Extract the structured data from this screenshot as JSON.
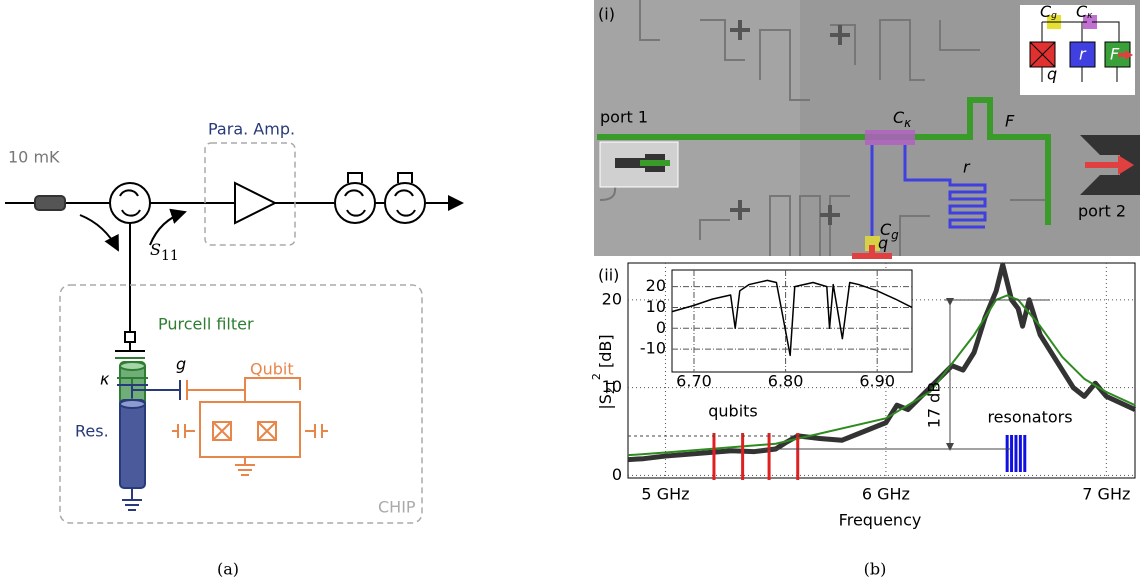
{
  "panel_a": {
    "temperature": "10 mK",
    "amp": "Para. Amp.",
    "s11": {
      "text": "S",
      "sub": "11"
    },
    "filter": "Purcell filter",
    "kappa": "κ",
    "g": "g",
    "qubit": "Qubit",
    "res": "Res.",
    "chip": "CHIP",
    "caption": "(a)"
  },
  "panel_b": {
    "caption": "(b)",
    "micro": {
      "label": "(i)",
      "port1": "port 1",
      "port2": "port 2",
      "ck": {
        "text": "C",
        "sub": "κ"
      },
      "f": "F",
      "r": "r",
      "cg": {
        "text": "C",
        "sub": "g"
      },
      "q": "q",
      "inset": {
        "cg": {
          "text": "C",
          "sub": "g"
        },
        "ck": {
          "text": "C",
          "sub": "κ"
        },
        "q": "q",
        "r": "r",
        "f": "F"
      }
    }
  },
  "chart_data": [
    {
      "type": "line",
      "panel_label": "(ii)",
      "xlabel": "Frequency",
      "ylabel": {
        "text": "|S",
        "sub": "21",
        "sup": "2",
        "rest": " [dB]"
      },
      "xlim": [
        4.83,
        7.13
      ],
      "ylim": [
        -0.3,
        24.2
      ],
      "xticks": [
        {
          "value": 5,
          "label": "5 GHz"
        },
        {
          "value": 6,
          "label": "6 GHz"
        },
        {
          "value": 7,
          "label": "7 GHz"
        }
      ],
      "yticks": [
        0,
        10,
        20
      ],
      "grid": true,
      "series": [
        {
          "color": "#333333",
          "width": 5,
          "x": [
            4.83,
            4.9,
            5.0,
            5.1,
            5.2,
            5.3,
            5.4,
            5.5,
            5.55,
            5.6,
            5.7,
            5.8,
            5.9,
            6.0,
            6.05,
            6.1,
            6.2,
            6.3,
            6.35,
            6.4,
            6.45,
            6.5,
            6.53,
            6.57,
            6.6,
            6.62,
            6.65,
            6.7,
            6.8,
            6.85,
            6.9,
            6.95,
            7.0,
            7.13
          ],
          "values": [
            1.8,
            1.9,
            2.2,
            2.4,
            2.6,
            2.8,
            2.7,
            3.0,
            3.8,
            4.5,
            4.2,
            4.0,
            5.0,
            6.0,
            8.0,
            7.5,
            10.0,
            12.5,
            12.0,
            14.0,
            18.0,
            21.0,
            24.0,
            20.0,
            19.0,
            17.0,
            20.0,
            16.0,
            12.0,
            10.0,
            9.0,
            10.5,
            9.0,
            7.5
          ]
        },
        {
          "color": "#2e8b1f",
          "width": 2,
          "x": [
            4.83,
            5.0,
            5.5,
            6.0,
            6.2,
            6.4,
            6.5,
            6.55,
            6.6,
            6.7,
            6.8,
            6.9,
            7.0,
            7.13
          ],
          "values": [
            2.3,
            2.6,
            3.6,
            6.5,
            9.5,
            16.0,
            20.0,
            20.5,
            20.0,
            17.0,
            13.5,
            11.0,
            9.5,
            8.0
          ]
        }
      ],
      "markers": [
        {
          "color": "#e02020",
          "x": [
            5.22,
            5.35,
            5.47,
            5.6
          ]
        },
        {
          "color": "#1010e0",
          "x": [
            6.55,
            6.57,
            6.59,
            6.61,
            6.63
          ]
        }
      ],
      "annotations": {
        "qubits": "qubits",
        "resonators": "resonators",
        "span": "17 dB"
      }
    },
    {
      "type": "line",
      "xlim": [
        6.676,
        6.938
      ],
      "ylim": [
        -21,
        28
      ],
      "xticks": [
        {
          "value": 6.7,
          "label": "6.70"
        },
        {
          "value": 6.8,
          "label": "6.80"
        },
        {
          "value": 6.9,
          "label": "6.90"
        }
      ],
      "yticks": [
        -10,
        0,
        10,
        20
      ],
      "grid": true,
      "series": [
        {
          "color": "#000000",
          "width": 1.5,
          "x": [
            6.676,
            6.7,
            6.72,
            6.74,
            6.745,
            6.75,
            6.76,
            6.78,
            6.79,
            6.805,
            6.81,
            6.83,
            6.845,
            6.848,
            6.852,
            6.862,
            6.87,
            6.88,
            6.9,
            6.92,
            6.938
          ],
          "values": [
            8,
            11,
            14,
            16,
            0,
            18,
            21,
            23,
            22,
            -13,
            20,
            22,
            20,
            0,
            21,
            -5,
            22,
            21,
            18,
            14,
            10
          ]
        }
      ]
    }
  ]
}
